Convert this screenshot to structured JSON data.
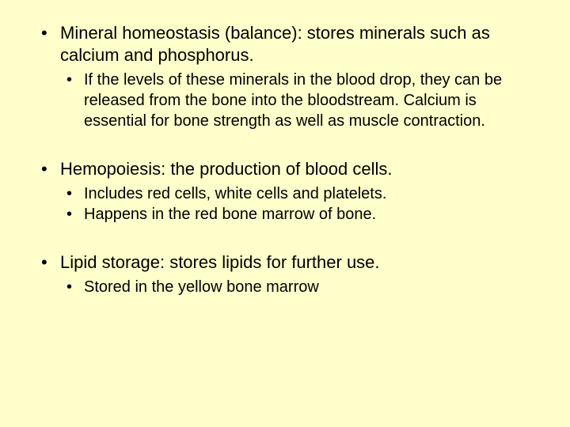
{
  "background_color": "#ffffcc",
  "text_color": "#000000",
  "font_family": "Arial",
  "level1_fontsize": 22,
  "level2_fontsize": 20,
  "sections": [
    {
      "heading": "Mineral homeostasis (balance): stores minerals such as calcium and phosphorus.",
      "subs": [
        "If the levels of these minerals in the blood drop, they can be released from the bone into the bloodstream. Calcium is essential for bone strength as well as muscle contraction."
      ]
    },
    {
      "heading": "Hemopoiesis: the production of blood cells.",
      "subs": [
        "Includes red cells, white cells and platelets.",
        "Happens in the red bone marrow of bone."
      ]
    },
    {
      "heading": "Lipid storage: stores lipids for further use.",
      "subs": [
        "Stored in the yellow bone marrow"
      ]
    }
  ]
}
